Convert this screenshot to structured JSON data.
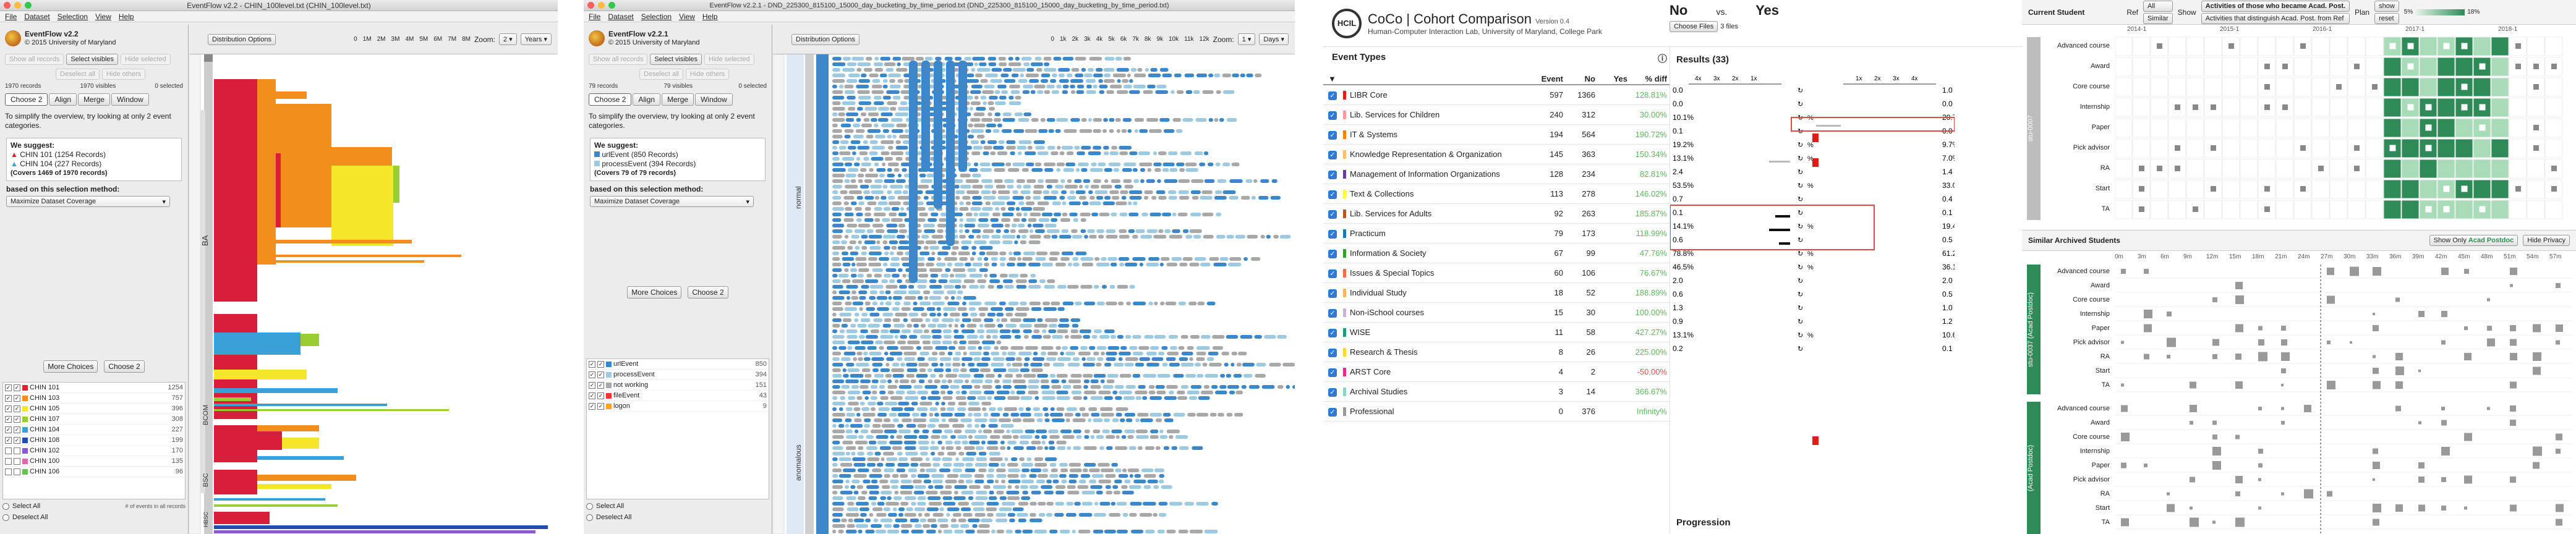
{
  "win1": {
    "title": "EventFlow v2.2 - CHIN_100level.txt (CHIN_100level.txt)",
    "menu": [
      "File",
      "Dataset",
      "Selection",
      "View",
      "Help"
    ],
    "app_name": "EventFlow v2.2",
    "copyright": "© 2015 University of Maryland",
    "btn_show_all": "Show all records",
    "btn_select_visibles": "Select visibles",
    "btn_hide_selected": "Hide selected",
    "btn_deselect_all": "Deselect all",
    "btn_hide_others": "Hide others",
    "stat_records": "1970 records",
    "stat_visibles": "1970 visibles",
    "stat_selected": "0 selected",
    "tabs": [
      "Choose 2",
      "Align",
      "Merge",
      "Window"
    ],
    "intro": "To simplify the overview, try looking at only 2 event categories.",
    "we_suggest": "We suggest:",
    "sugg1": "CHIN 101 (1254 Records)",
    "sugg2": "CHIN 104 (227 Records)",
    "covers": "(Covers 1469 of 1970 records)",
    "method_label": "based on this selection method:",
    "method_value": "Maximize Dataset Coverage",
    "more_choices": "More Choices",
    "choose2": "Choose 2",
    "dist_btn": "Distribution Options",
    "zoom_label": "Zoom:",
    "zoom_value": "2",
    "unit": "Years",
    "ticks": [
      "0",
      "1M",
      "2M",
      "3M",
      "4M",
      "5M",
      "6M",
      "7M",
      "8M"
    ],
    "events": [
      {
        "name": "CHIN 101",
        "count": "1254",
        "color": "#e3202b",
        "checked": true
      },
      {
        "name": "CHIN 103",
        "count": "757",
        "color": "#f28e1c",
        "checked": true
      },
      {
        "name": "CHIN 105",
        "count": "396",
        "color": "#f5e62a",
        "checked": true
      },
      {
        "name": "CHIN 107",
        "count": "308",
        "color": "#9acd32",
        "checked": true
      },
      {
        "name": "CHIN 104",
        "count": "227",
        "color": "#3aa0d8",
        "checked": true
      },
      {
        "name": "CHIN 108",
        "count": "199",
        "color": "#1f4fa8",
        "checked": true
      },
      {
        "name": "CHIN 102",
        "count": "170",
        "color": "#8a5ac8",
        "checked": false
      },
      {
        "name": "CHIN 100",
        "count": "135",
        "color": "#d86ab0",
        "checked": false
      },
      {
        "name": "CHIN 106",
        "count": "96",
        "color": "#6bbf5b",
        "checked": false
      }
    ],
    "select_all": "Select All",
    "deselect_all": "Deselect All",
    "events_footer": "# of events in all records",
    "groups": [
      "BA",
      "BCOM",
      "BSC",
      "HBSC"
    ]
  },
  "win2": {
    "title": "EventFlow v2.2.1 - DND_225300_815100_15000_day_bucketing_by_time_period.txt (DND_225300_815100_15000_day_bucketing_by_time_period.txt)",
    "menu": [
      "File",
      "Dataset",
      "Selection",
      "View",
      "Help"
    ],
    "app_name": "EventFlow v2.2.1",
    "copyright": "© 2015 University of Maryland",
    "btn_show_all": "Show all records",
    "btn_select_visibles": "Select visibles",
    "btn_hide_selected": "Hide selected",
    "btn_deselect_all": "Deselect all",
    "btn_hide_others": "Hide others",
    "stat_records": "79 records",
    "stat_visibles": "79 visibles",
    "stat_selected": "0 selected",
    "tabs": [
      "Choose 2",
      "Align",
      "Merge",
      "Window"
    ],
    "intro": "To simplify the overview, try looking at only 2 event categories.",
    "we_suggest": "We suggest:",
    "sugg1": "urlEvent (850 Records)",
    "sugg2": "processEvent (394 Records)",
    "covers": "(Covers 79 of 79 records)",
    "method_label": "based on this selection method:",
    "method_value": "Maximize Dataset Coverage",
    "more_choices": "More Choices",
    "choose2": "Choose 2",
    "dist_btn": "Distribution Options",
    "zoom_label": "Zoom:",
    "zoom_value": "1",
    "unit": "Days",
    "ticks": [
      "0",
      "1k",
      "2k",
      "3k",
      "4k",
      "5k",
      "6k",
      "7k",
      "8k",
      "9k",
      "10k",
      "11k",
      "12k"
    ],
    "events": [
      {
        "name": "urlEvent",
        "count": "850",
        "color": "#3b87c9",
        "checked": true
      },
      {
        "name": "processEvent",
        "count": "394",
        "color": "#9ecae1",
        "checked": true
      },
      {
        "name": "not working",
        "count": "151",
        "color": "#a8a8a8",
        "checked": true
      },
      {
        "name": "fileEvent",
        "count": "43",
        "color": "#e33b2e",
        "checked": true
      },
      {
        "name": "logon",
        "count": "9",
        "color": "#f5a623",
        "checked": true
      }
    ],
    "select_all": "Select All",
    "deselect_all": "Deselect All",
    "groups": [
      "normal",
      "anomalous"
    ],
    "axis_left": [
      "10",
      "20",
      "30",
      "40",
      "50",
      "60",
      "70"
    ]
  },
  "coco": {
    "title": "CoCo | Cohort Comparison",
    "version": "Version 0.4",
    "subtitle": "Human-Computer Interaction Lab, University of Maryland, College Park",
    "no": "No",
    "vs": "vs.",
    "yes": "Yes",
    "choose_files": "Choose Files",
    "files_count": "3 files",
    "event_types": "Event Types",
    "cols": [
      "Event",
      "No",
      "Yes",
      "% diff"
    ],
    "events": [
      {
        "name": "LIBR Core",
        "event": "597",
        "no": "1366",
        "yes": "128.81%",
        "color": "#e31a1c"
      },
      {
        "name": "Lib. Services for Children",
        "event": "240",
        "no": "312",
        "yes": "30.00%",
        "color": "#fb9a99"
      },
      {
        "name": "IT & Systems",
        "event": "194",
        "no": "564",
        "yes": "190.72%",
        "color": "#ff7f00"
      },
      {
        "name": "Knowledge Representation & Organization",
        "event": "145",
        "no": "363",
        "yes": "150.34%",
        "color": "#fdbf6f"
      },
      {
        "name": "Management of Information Organizations",
        "event": "128",
        "no": "234",
        "yes": "82.81%",
        "color": "#6a3d9a"
      },
      {
        "name": "Text & Collections",
        "event": "113",
        "no": "278",
        "yes": "146.02%",
        "color": "#ffff33"
      },
      {
        "name": "Lib. Services for Adults",
        "event": "92",
        "no": "263",
        "yes": "185.87%",
        "color": "#b15928"
      },
      {
        "name": "Practicum",
        "event": "79",
        "no": "173",
        "yes": "118.99%",
        "color": "#1f78b4"
      },
      {
        "name": "Information & Society",
        "event": "67",
        "no": "99",
        "yes": "47.76%",
        "color": "#33a02c"
      },
      {
        "name": "Issues & Special Topics",
        "event": "60",
        "no": "106",
        "yes": "76.67%",
        "color": "#fb6a4a"
      },
      {
        "name": "Individual Study",
        "event": "18",
        "no": "52",
        "yes": "188.89%",
        "color": "#fdb462"
      },
      {
        "name": "Non-iSchool courses",
        "event": "15",
        "no": "30",
        "yes": "100.00%",
        "color": "#cab2d6"
      },
      {
        "name": "WISE",
        "event": "11",
        "no": "58",
        "yes": "427.27%",
        "color": "#1b9e77"
      },
      {
        "name": "Research & Thesis",
        "event": "8",
        "no": "26",
        "yes": "225.00%",
        "color": "#ffd92f"
      },
      {
        "name": "ARST Core",
        "event": "4",
        "no": "2",
        "yes": "-50.00%",
        "color": "#e7298a"
      },
      {
        "name": "Archival Studies",
        "event": "3",
        "no": "14",
        "yes": "366.67%",
        "color": "#8dd3c7"
      },
      {
        "name": "Professional",
        "event": "0",
        "no": "376",
        "yes": "Infinity%",
        "color": "#999999"
      }
    ],
    "results": "Results (33)",
    "no_left": [
      "0.0",
      "0.0",
      "10.1%",
      "0.1",
      "19.2%",
      "13.1%",
      "2.4",
      "53.5%",
      "0.7",
      "0.1",
      "14.1%",
      "0.6",
      "78.8%",
      "46.5%",
      "2.0",
      "0.6",
      "1.3",
      "0.9",
      "13.1%",
      "0.2"
    ],
    "yes_right": [
      "1.0",
      "0.0",
      "20.7%",
      "0.0",
      "9.7%",
      "7.0%",
      "1.4",
      "33.0%",
      "0.4",
      "0.1",
      "19.4%",
      "0.5",
      "61.2%",
      "36.1%",
      "2.0",
      "0.5",
      "1.0",
      "1.2",
      "10.6%",
      "0.1"
    ],
    "no_ticks": [
      "4x",
      "3x",
      "2x",
      "1x"
    ],
    "yes_ticks": [
      "1x",
      "2x",
      "3x",
      "4x"
    ],
    "progression": "Progression"
  },
  "sim": {
    "current_student": "Current Student",
    "ref": "Ref",
    "all": "All",
    "similar": "Similar",
    "show": "Show",
    "show_opt1": "Activities of those who became Acad. Post.",
    "show_opt2": "Activities that distinguish Acad. Post. from Ref",
    "plan": "Plan",
    "show_btn": "show",
    "reset_btn": "reset",
    "legend_pct": [
      "5%",
      "18%"
    ],
    "legend_scale": "1",
    "years": [
      "2014-1",
      "2015-1",
      "2016-1",
      "2017-1",
      "2018-1"
    ],
    "rows": [
      "Advanced course",
      "Award",
      "Core course",
      "Internship",
      "Paper",
      "Pick advisor",
      "RA",
      "Start",
      "TA"
    ],
    "side_label": "stu-0007",
    "similar_title": "Similar Archived Students",
    "show_only": "Show Only",
    "show_only_val": "Acad Postdoc",
    "hide_privacy": "Hide Privacy",
    "months": [
      "0m",
      "3m",
      "6m",
      "9m",
      "12m",
      "15m",
      "18m",
      "21m",
      "24m",
      "27m",
      "30m",
      "33m",
      "36m",
      "39m",
      "42m",
      "45m",
      "48m",
      "51m",
      "54m",
      "57m"
    ],
    "arch1": "stu-0037 (Acad Postdoc)",
    "arch2": "(Acad Postdoc)"
  },
  "colors": {
    "green": "#2e8b57",
    "red_box": "#e0484a",
    "blue_check": "#2e7bd6"
  }
}
